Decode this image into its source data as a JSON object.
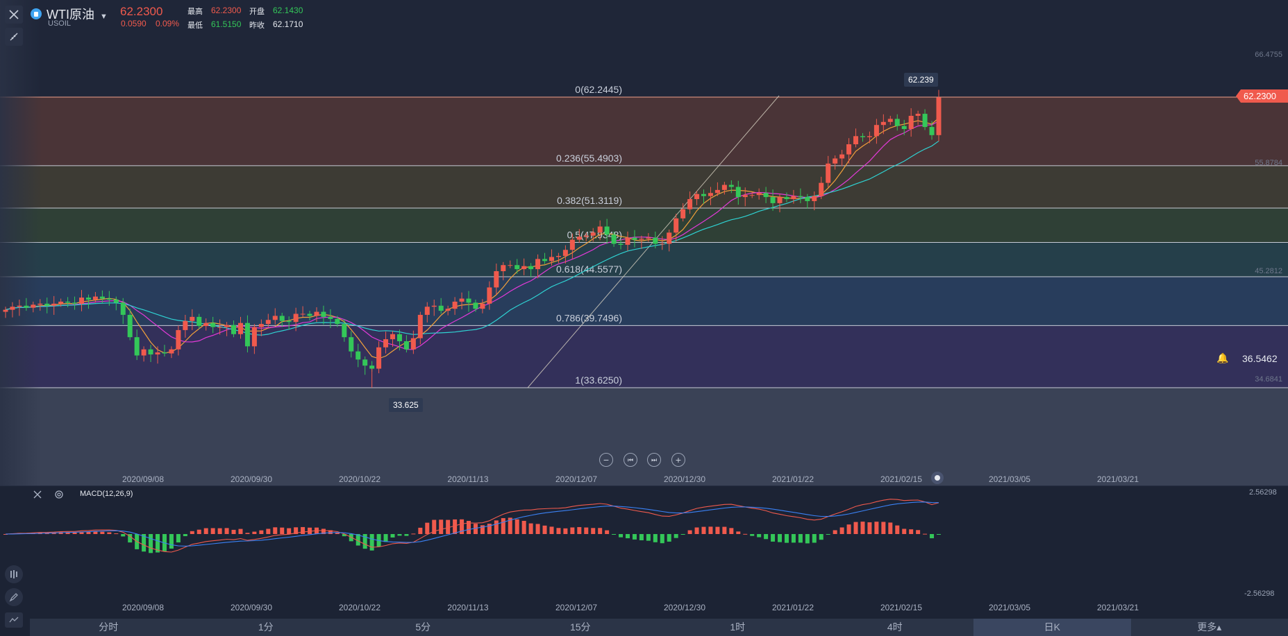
{
  "header": {
    "title": "WTI原油",
    "symbol": "USOIL",
    "price": "62.2300",
    "change": "0.0590",
    "change_pct": "0.09%",
    "high_label": "最高",
    "high": "62.2300",
    "open_label": "开盘",
    "open": "62.1430",
    "low_label": "最低",
    "low": "61.5150",
    "prev_close_label": "昨收",
    "prev_close": "62.1710"
  },
  "price_axis": {
    "ticks": [
      "66.4755",
      "55.8784",
      "45.2812",
      "34.6841"
    ],
    "current_price": "62.2300",
    "alert_price": "36.5462"
  },
  "callouts": {
    "high": "62.239",
    "low": "33.625"
  },
  "date_axis": [
    "2020/09/08",
    "2020/09/30",
    "2020/10/22",
    "2020/11/13",
    "2020/12/07",
    "2020/12/30",
    "2021/01/22",
    "2021/02/15",
    "2021/03/05",
    "2021/03/21"
  ],
  "macd": {
    "label": "MACD(12,26,9)",
    "top_tick": "2.56298",
    "bottom_tick": "-2.56298"
  },
  "timeframes": [
    "分时",
    "1分",
    "5分",
    "15分",
    "1时",
    "4时",
    "日K",
    "更多▴"
  ],
  "active_timeframe": "日K",
  "colors": {
    "up": "#f05a4d",
    "down": "#34c759",
    "ma5": "#f3a13b",
    "ma10": "#e23ad8",
    "ma20": "#2fd3d3",
    "dif": "#f05a4d",
    "dea": "#3b82f6"
  },
  "chart_data": [
    {
      "type": "candlestick",
      "title": "WTI原油",
      "ylim": [
        30.0,
        67.5
      ],
      "fibonacci": [
        {
          "ratio": "0",
          "label": "0(62.2445)",
          "price": 62.2445
        },
        {
          "ratio": "0.236",
          "label": "0.236(55.4903)",
          "price": 55.4903
        },
        {
          "ratio": "0.382",
          "label": "0.382(51.3119)",
          "price": 51.3119
        },
        {
          "ratio": "0.5",
          "label": "0.5(47.9348)",
          "price": 47.9348
        },
        {
          "ratio": "0.618",
          "label": "0.618(44.5577)",
          "price": 44.5577
        },
        {
          "ratio": "0.786",
          "label": "0.786(39.7496)",
          "price": 39.7496
        },
        {
          "ratio": "1",
          "label": "1(33.6250)",
          "price": 33.625
        }
      ],
      "closes": [
        41.3,
        41.6,
        41.7,
        41.5,
        41.8,
        41.9,
        41.7,
        41.9,
        42.1,
        42.0,
        41.9,
        42.5,
        42.3,
        42.6,
        42.4,
        42.3,
        42.0,
        40.8,
        38.6,
        36.8,
        37.4,
        36.9,
        37.1,
        37.0,
        37.4,
        39.3,
        40.2,
        40.6,
        39.7,
        40.0,
        39.6,
        39.6,
        39.8,
        38.9,
        40.0,
        37.7,
        39.6,
        39.9,
        40.3,
        40.7,
        40.2,
        40.1,
        40.9,
        40.9,
        40.7,
        41.1,
        40.6,
        40.4,
        39.9,
        38.6,
        37.2,
        36.4,
        35.8,
        35.5,
        37.6,
        38.4,
        38.9,
        38.2,
        37.4,
        38.5,
        40.8,
        41.6,
        41.7,
        41.2,
        41.4,
        42.1,
        42.4,
        42.0,
        41.4,
        41.9,
        43.5,
        45.1,
        45.7,
        45.7,
        45.3,
        45.6,
        45.3,
        46.3,
        46.1,
        46.5,
        46.6,
        47.2,
        48.2,
        48.5,
        48.6,
        48.9,
        49.5,
        48.7,
        47.8,
        47.7,
        48.4,
        48.2,
        48.3,
        48.4,
        47.8,
        47.8,
        48.9,
        50.3,
        51.2,
        52.2,
        52.7,
        52.5,
        52.8,
        53.1,
        53.6,
        53.4,
        52.4,
        52.6,
        52.6,
        52.8,
        52.4,
        51.8,
        52.4,
        52.2,
        52.5,
        52.4,
        52.0,
        52.5,
        53.8,
        55.7,
        56.2,
        56.6,
        57.6,
        58.4,
        58.3,
        58.4,
        59.5,
        59.8,
        60.1,
        59.4,
        59.1,
        60.4,
        60.6,
        59.3,
        58.5,
        62.2
      ]
    },
    {
      "type": "bar",
      "title": "MACD(12,26,9)",
      "ylim": [
        -2.56298,
        2.56298
      ]
    }
  ]
}
